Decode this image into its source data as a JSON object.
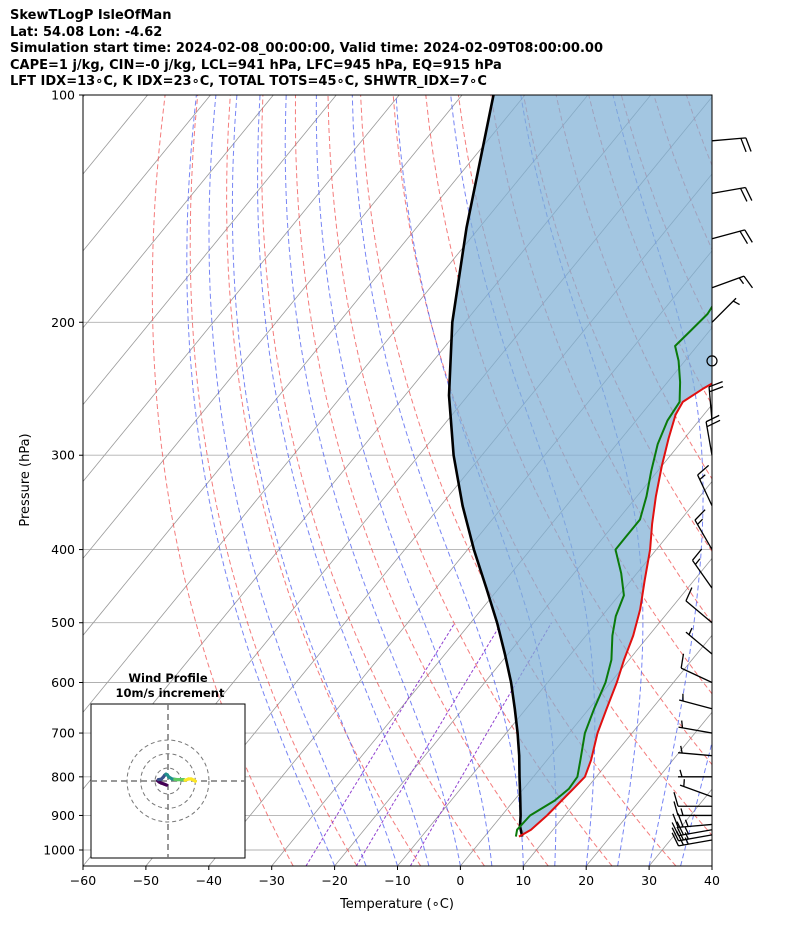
{
  "header": {
    "line1": "SkewTLogP IsleOfMan",
    "line2": "Lat: 54.08   Lon: -4.62",
    "line3": "Simulation start time: 2024-02-08_00:00:00, Valid time: 2024-02-09T08:00:00.00",
    "line4": "CAPE=1 j/kg, CIN=-0 j/kg, LCL=941 hPa, LFC=945 hPa, EQ=915 hPa",
    "line5": "LFT IDX=13∘C, K IDX=23∘C, TOTAL TOTS=45∘C, SHWTR_IDX=7∘C"
  },
  "chart_data": {
    "type": "skewt",
    "xlabel": "Temperature (∘C)",
    "ylabel": "Pressure (hPa)",
    "xlim": [
      -60,
      40
    ],
    "ylim": [
      1050,
      100
    ],
    "x_ticks": [
      -60,
      -50,
      -40,
      -30,
      -20,
      -10,
      0,
      10,
      20,
      30,
      40
    ],
    "x_tick_labels": [
      "−60",
      "−50",
      "−40",
      "−30",
      "−20",
      "−10",
      "0",
      "10",
      "20",
      "30",
      "40"
    ],
    "y_ticks": [
      100,
      200,
      300,
      400,
      500,
      600,
      700,
      800,
      900,
      1000
    ],
    "y_tick_labels": [
      "100",
      "200",
      "300",
      "400",
      "500",
      "600",
      "700",
      "800",
      "900",
      "1000"
    ],
    "colors": {
      "temperature": "#e01010",
      "dewpoint": "#0a7a0a",
      "parcel": "#000000",
      "shade": "#7fb0d6",
      "dry_adiabat": "#f05050",
      "moist_adiabat": "#4a5cf0",
      "mixing_ratio": "#9040d0",
      "isotherm": "#999999"
    },
    "temperature_profile": [
      [
        960,
        5.5
      ],
      [
        940,
        6.5
      ],
      [
        900,
        7.2
      ],
      [
        860,
        7.6
      ],
      [
        830,
        7.9
      ],
      [
        800,
        8.2
      ],
      [
        760,
        7.0
      ],
      [
        700,
        4.5
      ],
      [
        650,
        2.8
      ],
      [
        600,
        1.0
      ],
      [
        560,
        -0.8
      ],
      [
        520,
        -2.5
      ],
      [
        480,
        -4.8
      ],
      [
        440,
        -7.8
      ],
      [
        400,
        -11.0
      ],
      [
        370,
        -14.0
      ],
      [
        340,
        -17.0
      ],
      [
        310,
        -20.0
      ],
      [
        285,
        -22.5
      ],
      [
        265,
        -24.5
      ],
      [
        255,
        -25.0
      ],
      [
        245,
        -23.5
      ],
      [
        230,
        -20.5
      ],
      [
        215,
        -18.0
      ],
      [
        200,
        -16.0
      ],
      [
        185,
        -14.5
      ],
      [
        170,
        -13.0
      ],
      [
        155,
        -11.0
      ],
      [
        140,
        -10.0
      ],
      [
        125,
        -9.0
      ],
      [
        112,
        -8.0
      ],
      [
        100,
        -7.5
      ]
    ],
    "dewpoint_profile": [
      [
        960,
        5.0
      ],
      [
        940,
        4.3
      ],
      [
        900,
        4.5
      ],
      [
        860,
        6.5
      ],
      [
        830,
        7.2
      ],
      [
        800,
        7.0
      ],
      [
        760,
        5.3
      ],
      [
        700,
        2.5
      ],
      [
        650,
        0.8
      ],
      [
        600,
        -0.8
      ],
      [
        560,
        -2.8
      ],
      [
        520,
        -5.8
      ],
      [
        490,
        -7.8
      ],
      [
        460,
        -9.2
      ],
      [
        430,
        -12.5
      ],
      [
        400,
        -16.5
      ],
      [
        385,
        -16.5
      ],
      [
        365,
        -16.5
      ],
      [
        340,
        -18.5
      ],
      [
        315,
        -21.0
      ],
      [
        290,
        -23.5
      ],
      [
        270,
        -25.0
      ],
      [
        255,
        -25.5
      ],
      [
        240,
        -28.0
      ],
      [
        225,
        -31.0
      ],
      [
        215,
        -33.5
      ],
      [
        205,
        -33.0
      ],
      [
        195,
        -32.5
      ],
      [
        185,
        -33.0
      ],
      [
        172,
        -32.5
      ],
      [
        160,
        -31.5
      ],
      [
        148,
        -29.5
      ],
      [
        135,
        -27.5
      ],
      [
        120,
        -25.0
      ],
      [
        108,
        -22.5
      ],
      [
        100,
        -21.0
      ]
    ],
    "parcel_profile": [
      [
        960,
        6.0
      ],
      [
        930,
        4.3
      ],
      [
        900,
        3.0
      ],
      [
        850,
        0.5
      ],
      [
        800,
        -2.2
      ],
      [
        750,
        -5.0
      ],
      [
        700,
        -8.2
      ],
      [
        650,
        -11.8
      ],
      [
        600,
        -15.8
      ],
      [
        550,
        -20.5
      ],
      [
        500,
        -25.8
      ],
      [
        450,
        -32.0
      ],
      [
        400,
        -39.0
      ],
      [
        350,
        -46.5
      ],
      [
        300,
        -54.5
      ],
      [
        250,
        -63.0
      ],
      [
        200,
        -72.0
      ],
      [
        150,
        -82.0
      ],
      [
        100,
        -95.0
      ]
    ],
    "wind_barbs": [
      {
        "p": 970,
        "speed_kt": 25,
        "direction_deg": 260
      },
      {
        "p": 955,
        "speed_kt": 25,
        "direction_deg": 260
      },
      {
        "p": 940,
        "speed_kt": 25,
        "direction_deg": 260
      },
      {
        "p": 925,
        "speed_kt": 25,
        "direction_deg": 265
      },
      {
        "p": 900,
        "speed_kt": 15,
        "direction_deg": 270
      },
      {
        "p": 875,
        "speed_kt": 10,
        "direction_deg": 270
      },
      {
        "p": 850,
        "speed_kt": 5,
        "direction_deg": 290
      },
      {
        "p": 800,
        "speed_kt": 5,
        "direction_deg": 270
      },
      {
        "p": 750,
        "speed_kt": 5,
        "direction_deg": 275
      },
      {
        "p": 700,
        "speed_kt": 5,
        "direction_deg": 280
      },
      {
        "p": 650,
        "speed_kt": 5,
        "direction_deg": 285
      },
      {
        "p": 600,
        "speed_kt": 10,
        "direction_deg": 295
      },
      {
        "p": 550,
        "speed_kt": 5,
        "direction_deg": 310
      },
      {
        "p": 500,
        "speed_kt": 10,
        "direction_deg": 310
      },
      {
        "p": 450,
        "speed_kt": 15,
        "direction_deg": 325
      },
      {
        "p": 400,
        "speed_kt": 15,
        "direction_deg": 330
      },
      {
        "p": 350,
        "speed_kt": 15,
        "direction_deg": 335
      },
      {
        "p": 300,
        "speed_kt": 20,
        "direction_deg": 350
      },
      {
        "p": 270,
        "speed_kt": 20,
        "direction_deg": 355
      },
      {
        "p": 225,
        "speed_kt": 0,
        "direction_deg": 0
      },
      {
        "p": 200,
        "speed_kt": 5,
        "direction_deg": 45
      },
      {
        "p": 180,
        "speed_kt": 15,
        "direction_deg": 70
      },
      {
        "p": 155,
        "speed_kt": 20,
        "direction_deg": 75
      },
      {
        "p": 135,
        "speed_kt": 20,
        "direction_deg": 80
      },
      {
        "p": 115,
        "speed_kt": 20,
        "direction_deg": 85
      }
    ],
    "hodograph": {
      "title": "Wind Profile",
      "subtitle": "10m/s increment",
      "rings_ms": [
        10,
        20,
        30
      ],
      "colormap": [
        "#440154",
        "#3b528b",
        "#21918c",
        "#5ec962",
        "#fde725"
      ],
      "points": [
        [
          -1.0,
          -3.0
        ],
        [
          -3.0,
          -2.2
        ],
        [
          -5.0,
          -1.5
        ],
        [
          -6.5,
          -0.7
        ],
        [
          -7.5,
          0.2
        ],
        [
          -7.0,
          1.0
        ],
        [
          -5.0,
          1.3
        ],
        [
          -3.5,
          2.8
        ],
        [
          -2.5,
          4.2
        ],
        [
          -1.5,
          5.0
        ],
        [
          -0.5,
          4.5
        ],
        [
          0.5,
          3.0
        ],
        [
          3.0,
          1.5
        ],
        [
          5.0,
          1.2
        ],
        [
          7.0,
          1.0
        ],
        [
          9.5,
          1.0
        ],
        [
          11.5,
          1.0
        ],
        [
          12.5,
          0.5
        ],
        [
          15.0,
          1.5
        ],
        [
          17.0,
          1.5
        ],
        [
          18.0,
          1.0
        ],
        [
          19.0,
          0.6
        ],
        [
          20.0,
          -0.2
        ]
      ]
    }
  }
}
